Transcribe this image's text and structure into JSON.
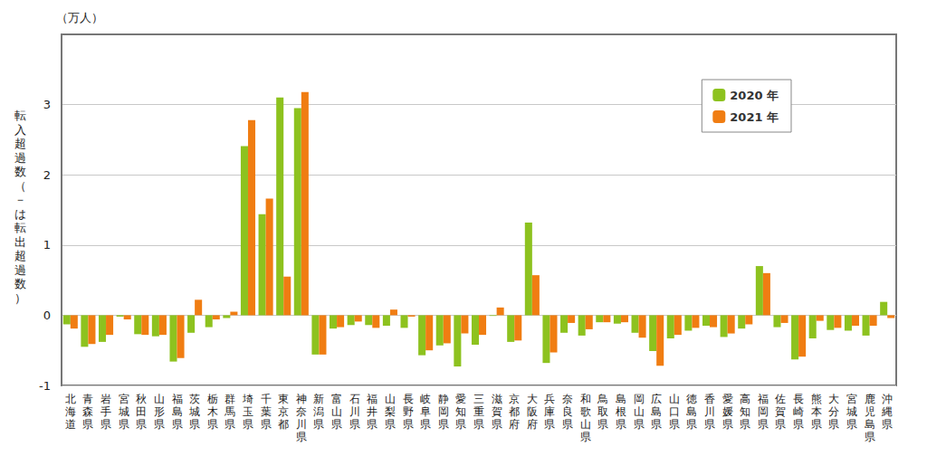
{
  "chart_data": {
    "type": "bar",
    "y_label": "転入超過数（－は転出超過数）",
    "y_unit": "（万人）",
    "categories": [
      "北海道",
      "青森県",
      "岩手県",
      "宮城県",
      "秋田県",
      "山形県",
      "福島県",
      "茨城県",
      "栃木県",
      "群馬県",
      "埼玉県",
      "千葉県",
      "東京都",
      "神奈川県",
      "新潟県",
      "富山県",
      "石川県",
      "福井県",
      "山梨県",
      "長野県",
      "岐阜県",
      "静岡県",
      "愛知県",
      "三重県",
      "滋賀県",
      "京都府",
      "大阪府",
      "兵庫県",
      "奈良県",
      "和歌山県",
      "鳥取県",
      "島根県",
      "岡山県",
      "広島県",
      "山口県",
      "徳島県",
      "香川県",
      "愛媛県",
      "高知県",
      "福岡県",
      "佐賀県",
      "長崎県",
      "熊本県",
      "大分県",
      "宮城県",
      "鹿児島県",
      "沖縄県"
    ],
    "series": [
      {
        "name": "2020 年",
        "color": "#8dc21f",
        "values": [
          -0.13,
          -0.45,
          -0.38,
          -0.02,
          -0.27,
          -0.3,
          -0.66,
          -0.25,
          -0.17,
          -0.04,
          2.41,
          1.44,
          3.1,
          2.95,
          -0.56,
          -0.19,
          -0.14,
          -0.14,
          -0.15,
          -0.18,
          -0.57,
          -0.43,
          -0.73,
          -0.42,
          -0.01,
          -0.38,
          1.32,
          -0.68,
          -0.25,
          -0.29,
          -0.1,
          -0.12,
          -0.25,
          -0.51,
          -0.33,
          -0.22,
          -0.15,
          -0.31,
          -0.19,
          0.7,
          -0.17,
          -0.63,
          -0.33,
          -0.21,
          -0.22,
          -0.29,
          0.19
        ]
      },
      {
        "name": "2021 年",
        "color": "#f07d12",
        "values": [
          -0.19,
          -0.41,
          -0.28,
          -0.06,
          -0.28,
          -0.28,
          -0.61,
          0.22,
          -0.06,
          0.05,
          2.78,
          1.66,
          0.55,
          3.18,
          -0.56,
          -0.17,
          -0.09,
          -0.18,
          0.08,
          -0.02,
          -0.5,
          -0.4,
          -0.26,
          -0.28,
          0.11,
          -0.36,
          0.57,
          -0.53,
          -0.11,
          -0.2,
          -0.1,
          -0.1,
          -0.32,
          -0.72,
          -0.28,
          -0.18,
          -0.17,
          -0.26,
          -0.13,
          0.6,
          -0.11,
          -0.59,
          -0.08,
          -0.18,
          -0.15,
          -0.15,
          -0.04
        ]
      }
    ],
    "ylim": [
      -1,
      4
    ],
    "yticks": [
      -1,
      0,
      1,
      2,
      3
    ],
    "grid": true,
    "legend": "upper right"
  }
}
